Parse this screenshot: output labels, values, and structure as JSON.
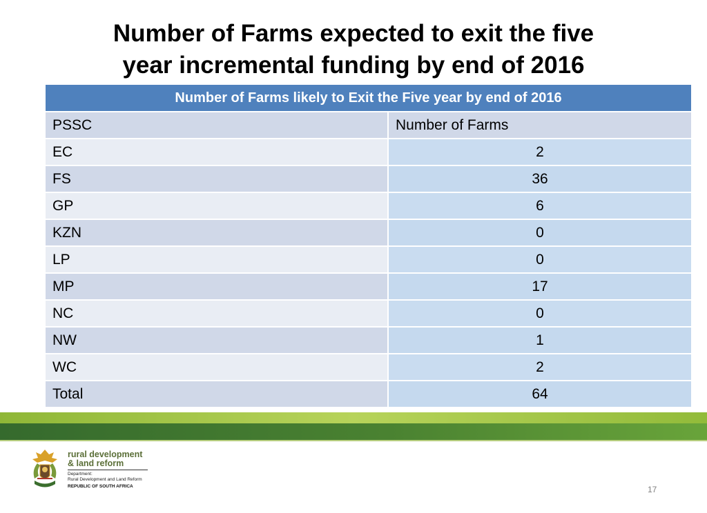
{
  "slide": {
    "title_line1": "Number of Farms expected to exit the five",
    "title_line2": "year incremental funding by end of 2016",
    "page_number": "17"
  },
  "table": {
    "caption": "Number of Farms likely to Exit the Five year by end of 2016",
    "column_headers": [
      "PSSC",
      "Number of Farms"
    ],
    "rows": [
      {
        "pssc": "EC",
        "farms": "2"
      },
      {
        "pssc": "FS",
        "farms": "36"
      },
      {
        "pssc": "GP",
        "farms": "6"
      },
      {
        "pssc": "KZN",
        "farms": "0"
      },
      {
        "pssc": "LP",
        "farms": "0"
      },
      {
        "pssc": "MP",
        "farms": "17"
      },
      {
        "pssc": "NC",
        "farms": "0"
      },
      {
        "pssc": "NW",
        "farms": "1"
      },
      {
        "pssc": "WC",
        "farms": "2"
      },
      {
        "pssc": "Total",
        "farms": "64"
      }
    ]
  },
  "logo": {
    "line1": "rural development",
    "line2": "& land reform",
    "dept_label": "Department:",
    "dept_name": "Rural Development and Land Reform",
    "country": "REPUBLIC OF SOUTH AFRICA"
  },
  "colors": {
    "table_header": "#4f81bd",
    "row_band_dark": "#d0d8e8",
    "row_band_light": "#e9edf4",
    "green_band": "#4a8231"
  }
}
